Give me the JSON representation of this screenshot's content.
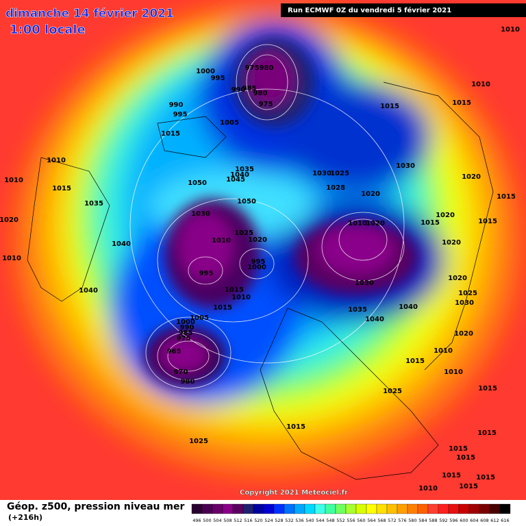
{
  "header": {
    "date": "dimanche 14 février 2021",
    "time": "1:00 locale",
    "run": "Run ECMWF 0Z du vendredi 5 février 2021"
  },
  "footer": {
    "copyright": "Copyright 2021 Meteociel.fr",
    "title": "Géop. z500, pression niveau mer",
    "lead": "(+216h)"
  },
  "legend": {
    "ticks": [
      496,
      500,
      504,
      508,
      512,
      516,
      520,
      524,
      528,
      532,
      536,
      540,
      544,
      548,
      552,
      556,
      560,
      564,
      568,
      572,
      576,
      580,
      584,
      588,
      592,
      596,
      600,
      604,
      608,
      612,
      616
    ],
    "colors": [
      "#2a0030",
      "#4a0050",
      "#6a006a",
      "#880088",
      "#5a0060",
      "#202070",
      "#0000a0",
      "#0000d0",
      "#0030ff",
      "#0070ff",
      "#00a8ff",
      "#00d8ff",
      "#40ffe8",
      "#40ffa0",
      "#70ff60",
      "#a8ff30",
      "#d8ff00",
      "#ffff00",
      "#ffe000",
      "#ffc000",
      "#ffa000",
      "#ff8000",
      "#ff6000",
      "#ff4030",
      "#ff2020",
      "#e81010",
      "#c80000",
      "#a00000",
      "#780000",
      "#480000",
      "#000000"
    ]
  },
  "pressure_labels": [
    1010,
    975,
    980,
    1000,
    995,
    990,
    985,
    980,
    975,
    1010,
    990,
    995,
    1015,
    1015,
    1005,
    1015,
    1010,
    1030,
    1035,
    1040,
    1045,
    1030,
    1025,
    1010,
    1015,
    1050,
    1028,
    1020,
    1035,
    1050,
    1020,
    1015,
    1030,
    1020,
    1015,
    1015,
    1020,
    1025,
    1010,
    1020,
    1010,
    1020,
    1040,
    1020,
    1010,
    995,
    1000,
    995,
    1030,
    1020,
    1015,
    1010,
    1040,
    1025,
    1030,
    1015,
    1035,
    1040,
    1040,
    1005,
    1000,
    990,
    985,
    975,
    1020,
    965,
    1010,
    1015,
    970,
    1010,
    980,
    1025,
    1015,
    1015,
    1025,
    1015,
    1015,
    1015,
    1015,
    1015,
    1010,
    1015
  ]
}
